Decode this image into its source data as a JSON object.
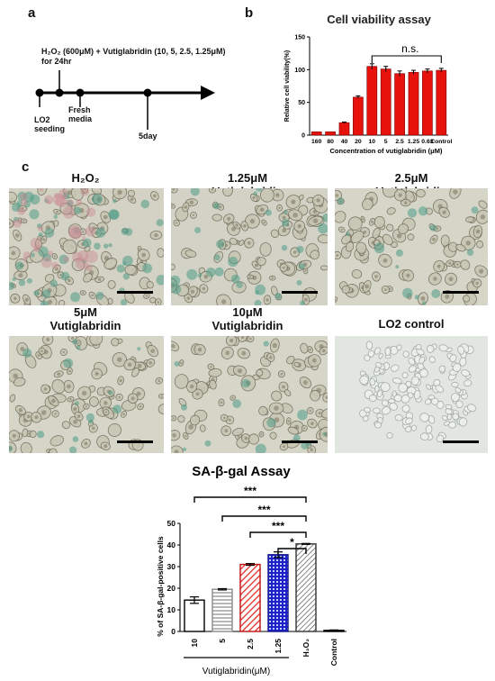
{
  "panels": {
    "a": "a",
    "b": "b",
    "c": "c"
  },
  "timeline": {
    "treatment": "H₂O₂ (600μM) + Vutiglabridin (10, 5, 2.5, 1.25μM)",
    "duration": "for 24hr",
    "events": [
      {
        "label_line1": "LO2",
        "label_line2": "seeding"
      },
      {
        "label_line1": "Fresh",
        "label_line2": "media"
      },
      {
        "label_line1": "5day",
        "label_line2": ""
      }
    ]
  },
  "micrographs": [
    {
      "line1": "H₂O₂",
      "line2": "",
      "stain": "heavy"
    },
    {
      "line1": "1.25μM",
      "line2": "Vutiglabridin",
      "stain": "medium"
    },
    {
      "line1": "2.5μM",
      "line2": "Vutiglabridin",
      "stain": "light"
    },
    {
      "line1": "5μM",
      "line2": "Vutiglabridin",
      "stain": "light"
    },
    {
      "line1": "10μM",
      "line2": "Vutiglabridin",
      "stain": "light"
    },
    {
      "line1": "LO2 control",
      "line2": "",
      "stain": "none"
    }
  ],
  "chart_data": [
    {
      "type": "bar",
      "title": "Cell viability assay",
      "xlabel": "Concentration of vutiglabridin (μM)",
      "ylabel": "Relative cell viability(%)",
      "categories": [
        "160",
        "80",
        "40",
        "20",
        "10",
        "5",
        "2.5",
        "1.25",
        "0.63",
        "Control"
      ],
      "values": [
        5,
        5,
        19,
        58,
        105,
        101,
        94,
        96,
        98,
        99
      ],
      "errors": [
        0,
        0,
        1,
        2,
        4,
        4,
        4,
        3,
        3,
        3
      ],
      "ylim": [
        0,
        150
      ],
      "yticks": [
        0,
        50,
        100,
        150
      ],
      "color": "#e8120c",
      "annotation": "n.s.",
      "grid": false
    },
    {
      "type": "bar",
      "title": "SA-β-gal Assay",
      "ylabel": "% of SA-β-gal-positive cells",
      "xlabel": "Vutiglabridin(μM)",
      "categories": [
        "10",
        "5",
        "2.5",
        "1.25",
        "H₂O₂",
        "Control"
      ],
      "values": [
        14.5,
        19.5,
        31,
        35.5,
        40.5,
        0.5
      ],
      "errors": [
        1.5,
        0.3,
        0.4,
        1.3,
        0.2,
        0.2
      ],
      "fills": [
        "open",
        "gray-horizontal",
        "red-diagonal",
        "blue-crosshatch",
        "gray-diagonal",
        "black"
      ],
      "ylim": [
        0,
        50
      ],
      "yticks": [
        0,
        10,
        20,
        30,
        40,
        50
      ],
      "significance": [
        {
          "from": "10",
          "to": "H₂O₂",
          "label": "***"
        },
        {
          "from": "5",
          "to": "H₂O₂",
          "label": "***"
        },
        {
          "from": "2.5",
          "to": "H₂O₂",
          "label": "***"
        },
        {
          "from": "1.25",
          "to": "H₂O₂",
          "label": "*"
        }
      ],
      "grid": false
    }
  ]
}
